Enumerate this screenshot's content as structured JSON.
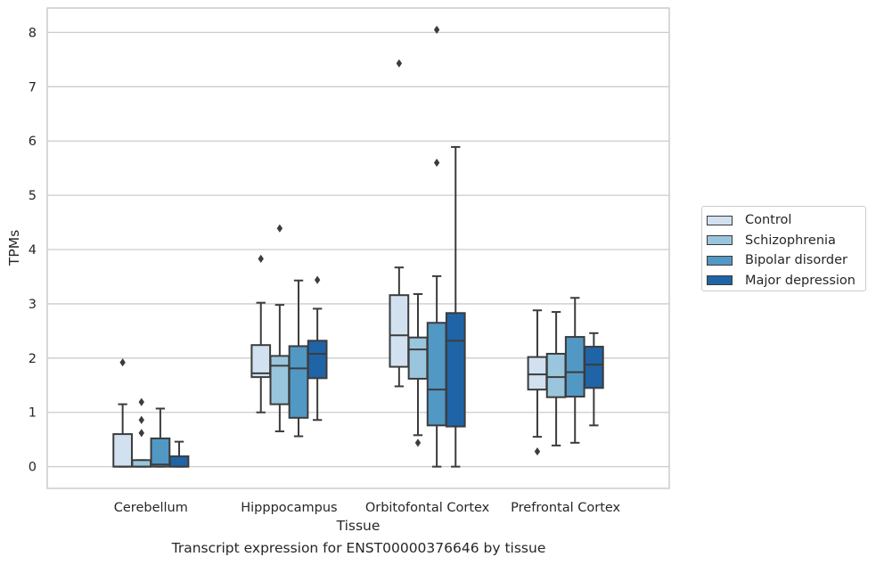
{
  "chart_data": {
    "type": "boxplot",
    "caption": "Transcript expression for ENST00000376646 by tissue",
    "xlabel": "Tissue",
    "ylabel": "TPMs",
    "ylim": [
      -0.4,
      8.45
    ],
    "yticks": [
      0,
      1,
      2,
      3,
      4,
      5,
      6,
      7,
      8
    ],
    "grid": "horizontal",
    "legend_position": "right",
    "categories": [
      "Cerebellum",
      "Hipppocampus",
      "Orbitofontal Cortex",
      "Prefrontal Cortex"
    ],
    "series": [
      {
        "name": "Control",
        "color": "#d1e1f0",
        "boxes": [
          {
            "whislo": 0,
            "q1": 0,
            "med": 0,
            "q3": 0.6,
            "whishi": 1.15,
            "fliers": [
              1.92
            ]
          },
          {
            "whislo": 1.0,
            "q1": 1.65,
            "med": 1.72,
            "q3": 2.24,
            "whishi": 3.02,
            "fliers": [
              3.83
            ]
          },
          {
            "whislo": 1.48,
            "q1": 1.84,
            "med": 2.42,
            "q3": 3.16,
            "whishi": 3.67,
            "fliers": [
              7.43
            ]
          },
          {
            "whislo": 0.55,
            "q1": 1.42,
            "med": 1.7,
            "q3": 2.02,
            "whishi": 2.88,
            "fliers": [
              0.28
            ]
          }
        ]
      },
      {
        "name": "Schizophrenia",
        "color": "#9ac6dd",
        "boxes": [
          {
            "whislo": 0,
            "q1": 0,
            "med": 0,
            "q3": 0.12,
            "whishi": 0.12,
            "fliers": [
              0.62,
              0.86,
              1.19
            ]
          },
          {
            "whislo": 0.65,
            "q1": 1.15,
            "med": 1.86,
            "q3": 2.04,
            "whishi": 2.98,
            "fliers": [
              4.39
            ]
          },
          {
            "whislo": 0.58,
            "q1": 1.62,
            "med": 2.16,
            "q3": 2.38,
            "whishi": 3.18,
            "fliers": [
              0.44
            ]
          },
          {
            "whislo": 0.39,
            "q1": 1.28,
            "med": 1.65,
            "q3": 2.08,
            "whishi": 2.85,
            "fliers": []
          }
        ]
      },
      {
        "name": "Bipolar disorder",
        "color": "#5198c5",
        "boxes": [
          {
            "whislo": 0,
            "q1": 0,
            "med": 0.04,
            "q3": 0.52,
            "whishi": 1.07,
            "fliers": []
          },
          {
            "whislo": 0.56,
            "q1": 0.9,
            "med": 1.81,
            "q3": 2.22,
            "whishi": 3.43,
            "fliers": []
          },
          {
            "whislo": 0,
            "q1": 0.76,
            "med": 1.42,
            "q3": 2.65,
            "whishi": 3.51,
            "fliers": [
              5.6,
              8.05
            ]
          },
          {
            "whislo": 0.44,
            "q1": 1.29,
            "med": 1.74,
            "q3": 2.39,
            "whishi": 3.11,
            "fliers": []
          }
        ]
      },
      {
        "name": "Major depression",
        "color": "#1f64a6",
        "boxes": [
          {
            "whislo": 0,
            "q1": 0,
            "med": 0,
            "q3": 0.19,
            "whishi": 0.46,
            "fliers": []
          },
          {
            "whislo": 0.86,
            "q1": 1.63,
            "med": 2.08,
            "q3": 2.32,
            "whishi": 2.91,
            "fliers": [
              3.44
            ]
          },
          {
            "whislo": 0,
            "q1": 0.74,
            "med": 2.32,
            "q3": 2.83,
            "whishi": 5.89,
            "fliers": []
          },
          {
            "whislo": 0.76,
            "q1": 1.45,
            "med": 1.88,
            "q3": 2.21,
            "whishi": 2.46,
            "fliers": []
          }
        ]
      }
    ]
  }
}
